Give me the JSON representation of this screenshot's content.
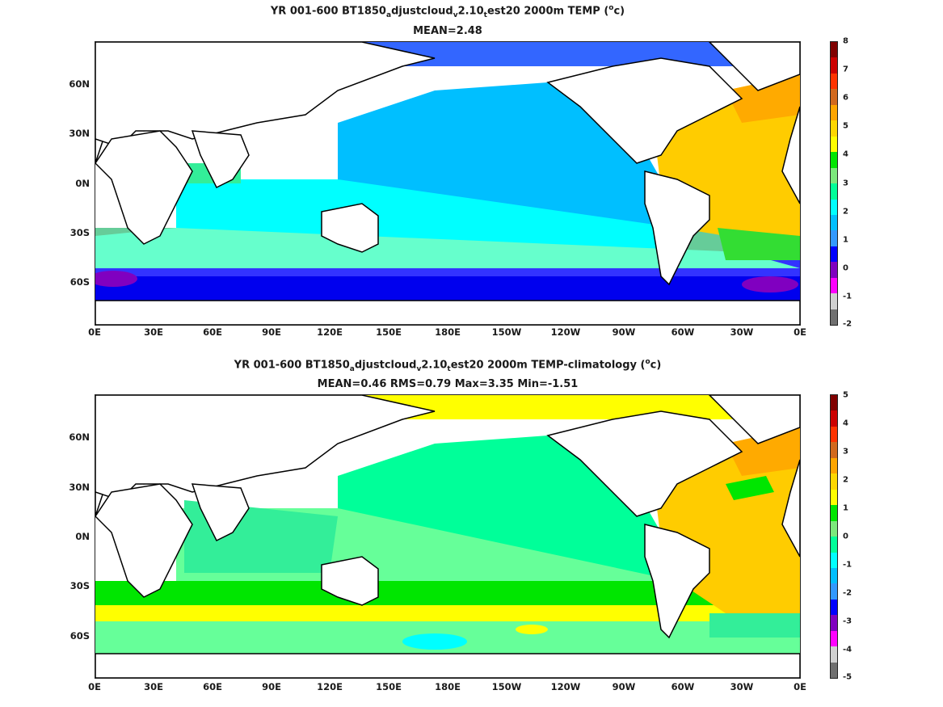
{
  "panels": [
    {
      "title_parts": [
        "YR 001-600 BT1850",
        "a",
        "djustcloud",
        "v",
        "2.10",
        "t",
        "est20 2000m TEMP (",
        "o",
        "c)"
      ],
      "stats": "MEAN=2.48",
      "colorbar_labels": [
        "8",
        "7",
        "6",
        "5",
        "4",
        "3",
        "2",
        "1",
        "0",
        "-1",
        "-2"
      ]
    },
    {
      "title_parts": [
        "YR 001-600 BT1850",
        "a",
        "djustcloud",
        "v",
        "2.10",
        "t",
        "est20 2000m TEMP-climatology (",
        "o",
        "c)"
      ],
      "stats": "MEAN=0.46   RMS=0.79   Max=3.35   Min=-1.51",
      "colorbar_labels": [
        "5",
        "4",
        "3",
        "2",
        "1",
        "0",
        "-1",
        "-2",
        "-3",
        "-4",
        "-5"
      ]
    }
  ],
  "x_ticks": [
    "0E",
    "30E",
    "60E",
    "90E",
    "120E",
    "150E",
    "180E",
    "150W",
    "120W",
    "90W",
    "60W",
    "30W",
    "0E"
  ],
  "y_ticks": [
    "60N",
    "30N",
    "0N",
    "30S",
    "60S"
  ],
  "colorbar_colors": [
    "#800000",
    "#cc0000",
    "#ff3300",
    "#d2691e",
    "#ffa500",
    "#ffd700",
    "#ffff00",
    "#00e600",
    "#7ce87c",
    "#00ff99",
    "#00ffff",
    "#00bfff",
    "#3399ff",
    "#0000ff",
    "#8000c0",
    "#ff00ff",
    "#d0d0d0",
    "#707070"
  ],
  "chart_data": {
    "type": "heatmap",
    "maps": [
      {
        "variable": "2000m TEMP",
        "unit": "oC",
        "mean": 2.48,
        "colorbar_range": [
          -2,
          8
        ]
      },
      {
        "variable": "2000m TEMP-climatology",
        "unit": "oC",
        "mean": 0.46,
        "rms": 0.79,
        "max": 3.35,
        "min": -1.51,
        "colorbar_range": [
          -5,
          5
        ]
      }
    ],
    "x_range": [
      "0E",
      "0E"
    ],
    "y_ticks": [
      "60N",
      "30N",
      "0N",
      "30S",
      "60S"
    ]
  }
}
